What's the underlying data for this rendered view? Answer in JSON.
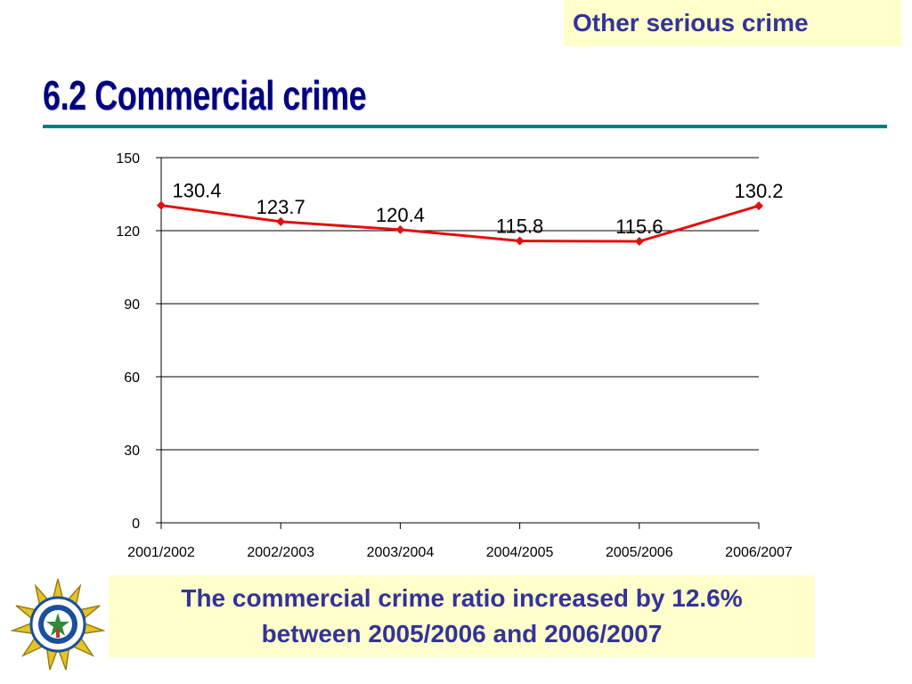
{
  "header": {
    "category_label": "Other serious crime",
    "title": "6.2   Commercial crime"
  },
  "caption": {
    "line1": "The commercial crime ratio increased by 12.6%",
    "line2": "between 2005/2006 and 2006/2007"
  },
  "logo": {
    "name": "saps-star-badge-icon",
    "text": "SOUTH AFRICAN POLICE SERVICE"
  },
  "colors": {
    "accent_teal": "#008080",
    "title_navy": "#000080",
    "caption_text": "#333399",
    "box_background": "#ffffcc",
    "series_line": "#e31010"
  },
  "chart_data": {
    "type": "line",
    "title": "",
    "xlabel": "",
    "ylabel": "",
    "categories": [
      "2001/2002",
      "2002/2003",
      "2003/2004",
      "2004/2005",
      "2005/2006",
      "2006/2007"
    ],
    "series": [
      {
        "values": [
          130.4,
          123.7,
          120.4,
          115.8,
          115.6,
          130.2
        ]
      }
    ],
    "data_labels": [
      "130.4",
      "123.7",
      "120.4",
      "115.8",
      "115.6",
      "130.2"
    ],
    "ylim": [
      0,
      150
    ],
    "yticks": [
      0,
      30,
      60,
      90,
      120,
      150
    ],
    "grid": true,
    "legend": "none",
    "marker": "diamond"
  }
}
